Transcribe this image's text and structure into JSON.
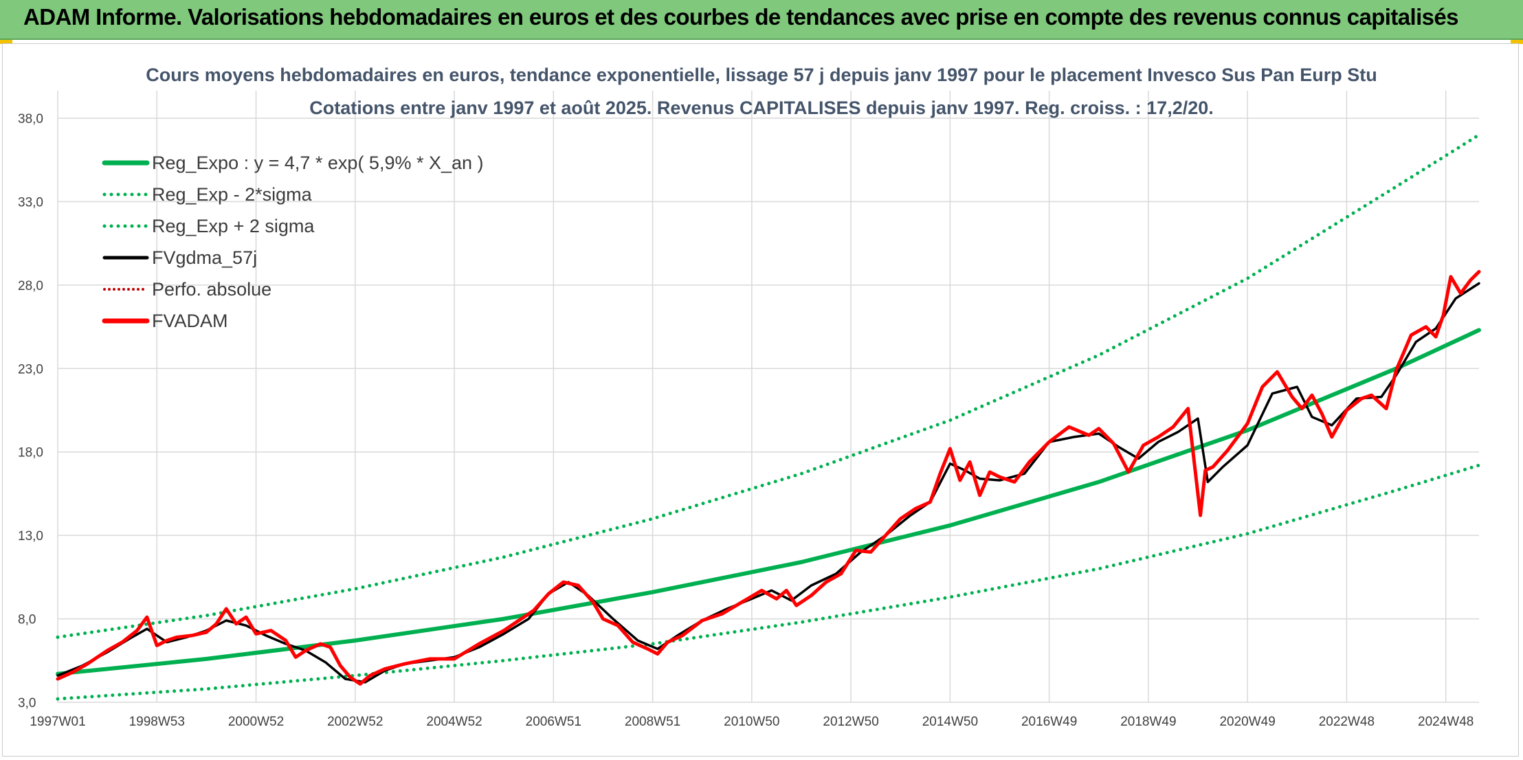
{
  "header": {
    "title": "ADAM Informe. Valorisations hebdomadaires en euros et des courbes de tendances avec prise en compte des revenus connus capitalisés"
  },
  "colors": {
    "banner": "#7fc87c",
    "regression": "#00b050",
    "price": "#ff0000",
    "smoothed": "#000000",
    "perfo": "#c00000",
    "grid": "#d9d9d9"
  },
  "chart_data": {
    "type": "line",
    "title": "Cours moyens hebdomadaires en euros, tendance exponentielle, lissage 57 j depuis janv 1997 pour le placement Invesco Sus Pan Eurp Stu",
    "subtitle": "Cotations entre janv 1997 et août 2025. Revenus CAPITALISES depuis janv 1997. Reg. croiss. : 17,2/20.",
    "xlabel": "",
    "ylabel": "",
    "x_range": [
      1997.0,
      2025.67
    ],
    "ylim": [
      3,
      38
    ],
    "yticks": [
      "3,0",
      "8,0",
      "13,0",
      "18,0",
      "23,0",
      "28,0",
      "33,0",
      "38,0"
    ],
    "x_tick_labels": [
      "1997W01",
      "1998W53",
      "2000W52",
      "2002W52",
      "2004W52",
      "2006W51",
      "2008W51",
      "2010W50",
      "2012W50",
      "2014W50",
      "2016W49",
      "2018W49",
      "2020W49",
      "2022W48",
      "2024W48"
    ],
    "x_tick_positions": [
      1997.0,
      1999.0,
      2001.0,
      2003.0,
      2005.0,
      2007.0,
      2009.0,
      2011.0,
      2013.0,
      2015.0,
      2017.0,
      2019.0,
      2021.0,
      2023.0,
      2025.0
    ],
    "grid": true,
    "legend_position": "top-left",
    "series": [
      {
        "name": "Reg_Expo : y = 4,7 * exp( 5,9% *  X_an )",
        "style": "solid-thick",
        "color": "#00b050",
        "x": [
          1997.0,
          2000.0,
          2003.0,
          2006.0,
          2009.0,
          2012.0,
          2015.0,
          2018.0,
          2021.0,
          2024.0,
          2025.67
        ],
        "values": [
          4.7,
          5.6,
          6.7,
          8.0,
          9.6,
          11.4,
          13.6,
          16.2,
          19.3,
          23.0,
          25.3
        ]
      },
      {
        "name": "Reg_Exp - 2*sigma",
        "style": "dotted",
        "color": "#00b050",
        "x": [
          1997.0,
          2000.0,
          2003.0,
          2006.0,
          2009.0,
          2012.0,
          2015.0,
          2018.0,
          2021.0,
          2024.0,
          2025.67
        ],
        "values": [
          3.2,
          3.8,
          4.6,
          5.5,
          6.5,
          7.8,
          9.3,
          11.0,
          13.1,
          15.7,
          17.2
        ]
      },
      {
        "name": "Reg_Exp + 2 sigma",
        "style": "dotted",
        "color": "#00b050",
        "x": [
          1997.0,
          2000.0,
          2003.0,
          2006.0,
          2009.0,
          2012.0,
          2015.0,
          2018.0,
          2021.0,
          2024.0,
          2025.67
        ],
        "values": [
          6.9,
          8.2,
          9.8,
          11.7,
          14.0,
          16.7,
          19.9,
          23.8,
          28.4,
          33.9,
          37.0
        ]
      },
      {
        "name": "FVgdma_57j",
        "style": "solid",
        "color": "#000000",
        "x": [
          1997.0,
          1997.5,
          1998.0,
          1998.5,
          1998.8,
          1999.2,
          1999.6,
          2000.0,
          2000.4,
          2000.8,
          2001.2,
          2001.6,
          2002.0,
          2002.4,
          2002.8,
          2003.2,
          2003.6,
          2004.0,
          2004.5,
          2005.0,
          2005.5,
          2006.0,
          2006.5,
          2006.9,
          2007.3,
          2007.7,
          2008.2,
          2008.7,
          2009.1,
          2009.5,
          2010.0,
          2010.5,
          2011.0,
          2011.4,
          2011.8,
          2012.2,
          2012.7,
          2013.2,
          2013.7,
          2014.2,
          2014.6,
          2015.0,
          2015.3,
          2015.6,
          2016.0,
          2016.5,
          2017.0,
          2017.5,
          2018.0,
          2018.4,
          2018.8,
          2019.2,
          2019.6,
          2020.0,
          2020.2,
          2020.5,
          2021.0,
          2021.5,
          2022.0,
          2022.3,
          2022.7,
          2023.2,
          2023.7,
          2024.0,
          2024.4,
          2024.8,
          2025.2,
          2025.67
        ],
        "values": [
          4.6,
          5.2,
          6.0,
          6.9,
          7.4,
          6.6,
          6.9,
          7.3,
          7.9,
          7.6,
          7.0,
          6.5,
          6.1,
          5.4,
          4.4,
          4.2,
          4.9,
          5.3,
          5.5,
          5.7,
          6.3,
          7.1,
          8.0,
          9.5,
          10.2,
          9.4,
          8.0,
          6.7,
          6.2,
          7.0,
          7.9,
          8.6,
          9.2,
          9.7,
          9.1,
          10.0,
          10.7,
          12.0,
          13.0,
          14.2,
          15.0,
          17.3,
          16.9,
          16.4,
          16.3,
          16.7,
          18.6,
          18.9,
          19.1,
          18.3,
          17.6,
          18.6,
          19.2,
          20.0,
          16.2,
          17.1,
          18.4,
          21.5,
          21.9,
          20.1,
          19.6,
          21.2,
          21.3,
          22.6,
          24.6,
          25.4,
          27.2,
          28.1
        ]
      },
      {
        "name": "Perfo. absolue",
        "style": "dotted",
        "color": "#c00000",
        "x": [],
        "values": []
      },
      {
        "name": "FVADAM",
        "style": "solid-thick",
        "color": "#ff0000",
        "x": [
          1997.0,
          1997.3,
          1997.6,
          1998.0,
          1998.3,
          1998.6,
          1998.8,
          1999.0,
          1999.2,
          1999.4,
          1999.7,
          2000.0,
          2000.2,
          2000.4,
          2000.6,
          2000.8,
          2001.0,
          2001.3,
          2001.6,
          2001.8,
          2002.0,
          2002.3,
          2002.5,
          2002.7,
          2002.9,
          2003.1,
          2003.3,
          2003.6,
          2004.0,
          2004.5,
          2005.0,
          2005.5,
          2006.0,
          2006.3,
          2006.6,
          2006.9,
          2007.2,
          2007.5,
          2007.8,
          2008.0,
          2008.3,
          2008.6,
          2008.9,
          2009.1,
          2009.3,
          2009.6,
          2010.0,
          2010.4,
          2010.8,
          2011.2,
          2011.5,
          2011.7,
          2011.9,
          2012.2,
          2012.5,
          2012.8,
          2013.1,
          2013.4,
          2013.7,
          2014.0,
          2014.3,
          2014.6,
          2014.8,
          2015.0,
          2015.2,
          2015.4,
          2015.6,
          2015.8,
          2016.0,
          2016.3,
          2016.6,
          2017.0,
          2017.4,
          2017.8,
          2018.0,
          2018.3,
          2018.6,
          2018.9,
          2019.2,
          2019.5,
          2019.8,
          2020.05,
          2020.15,
          2020.3,
          2020.6,
          2021.0,
          2021.3,
          2021.6,
          2021.9,
          2022.1,
          2022.3,
          2022.5,
          2022.7,
          2023.0,
          2023.3,
          2023.5,
          2023.8,
          2024.0,
          2024.3,
          2024.6,
          2024.8,
          2024.95,
          2025.1,
          2025.3,
          2025.5,
          2025.67
        ],
        "values": [
          4.4,
          4.8,
          5.3,
          6.1,
          6.6,
          7.3,
          8.1,
          6.4,
          6.7,
          6.9,
          7.0,
          7.2,
          7.7,
          8.6,
          7.7,
          8.1,
          7.1,
          7.3,
          6.7,
          5.7,
          6.1,
          6.5,
          6.3,
          5.2,
          4.5,
          4.1,
          4.6,
          5.0,
          5.3,
          5.6,
          5.6,
          6.5,
          7.3,
          7.9,
          8.5,
          9.5,
          10.2,
          10.0,
          9.0,
          8.0,
          7.6,
          6.6,
          6.2,
          5.9,
          6.6,
          7.0,
          7.9,
          8.3,
          9.0,
          9.7,
          9.2,
          9.7,
          8.8,
          9.4,
          10.2,
          10.7,
          12.1,
          12.0,
          13.0,
          14.0,
          14.6,
          15.0,
          16.7,
          18.2,
          16.3,
          17.4,
          15.4,
          16.8,
          16.5,
          16.2,
          17.4,
          18.6,
          19.5,
          19.0,
          19.4,
          18.5,
          16.8,
          18.4,
          18.9,
          19.5,
          20.6,
          14.2,
          16.9,
          17.1,
          18.1,
          19.7,
          21.9,
          22.8,
          21.3,
          20.6,
          21.4,
          20.3,
          18.9,
          20.5,
          21.2,
          21.4,
          20.6,
          22.9,
          25.0,
          25.5,
          24.9,
          26.2,
          28.5,
          27.5,
          28.3,
          28.8
        ]
      }
    ]
  }
}
